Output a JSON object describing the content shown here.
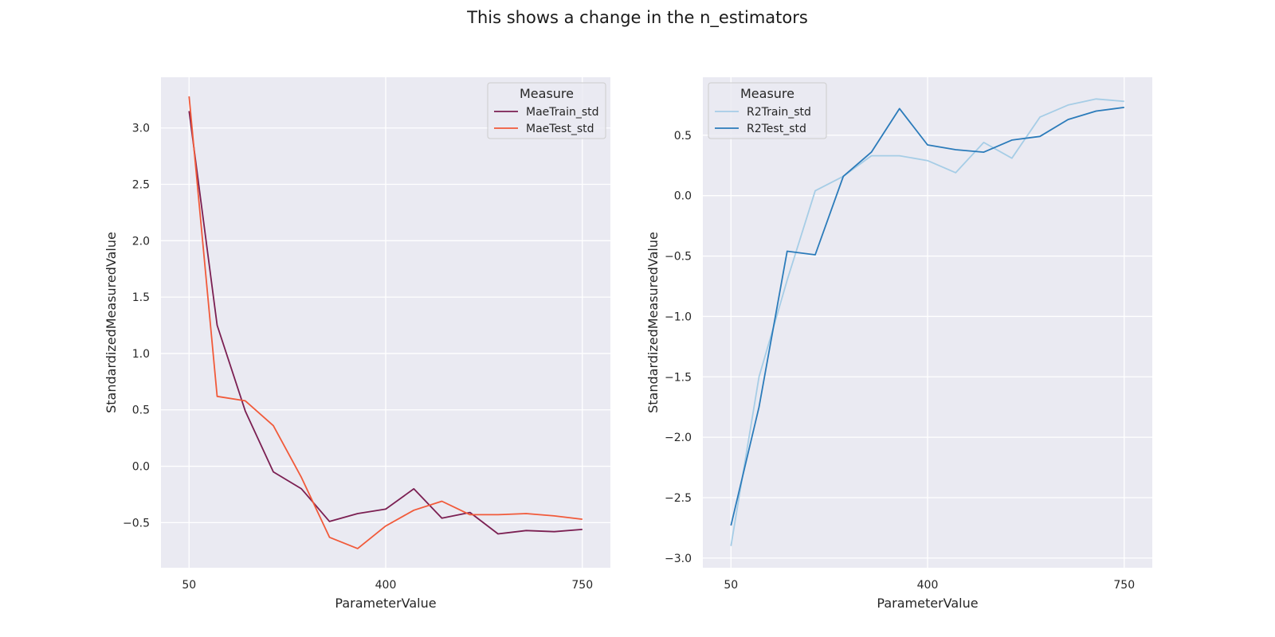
{
  "figure": {
    "title": "This shows a change in the n_estimators"
  },
  "chart_data": [
    {
      "type": "line",
      "xlabel": "ParameterValue",
      "ylabel": "StandardizedMeasuredValue",
      "xlim": [
        0,
        800
      ],
      "ylim": [
        -0.9,
        3.45
      ],
      "xticks": [
        50,
        400,
        750
      ],
      "yticks": [
        -0.5,
        0.0,
        0.5,
        1.0,
        1.5,
        2.0,
        2.5,
        3.0
      ],
      "ytick_labels": [
        "−0.5",
        "0.0",
        "0.5",
        "1.0",
        "1.5",
        "2.0",
        "2.5",
        "3.0"
      ],
      "grid": true,
      "legend": {
        "title": "Measure",
        "position": "top-right"
      },
      "x": [
        50,
        100,
        150,
        200,
        250,
        300,
        350,
        400,
        450,
        500,
        550,
        600,
        650,
        700,
        750
      ],
      "series": [
        {
          "name": "MaeTrain_std",
          "color": "#7b1f52",
          "values": [
            3.15,
            1.25,
            0.49,
            -0.05,
            -0.2,
            -0.49,
            -0.42,
            -0.38,
            -0.2,
            -0.46,
            -0.41,
            -0.6,
            -0.57,
            -0.58,
            -0.56
          ]
        },
        {
          "name": "MaeTest_std",
          "color": "#f15a3a",
          "values": [
            3.28,
            0.62,
            0.58,
            0.36,
            -0.1,
            -0.63,
            -0.73,
            -0.53,
            -0.39,
            -0.31,
            -0.43,
            -0.43,
            -0.42,
            -0.44,
            -0.47
          ]
        }
      ]
    },
    {
      "type": "line",
      "xlabel": "ParameterValue",
      "ylabel": "StandardizedMeasuredValue",
      "xlim": [
        0,
        800
      ],
      "ylim": [
        -3.08,
        0.98
      ],
      "xticks": [
        50,
        400,
        750
      ],
      "yticks": [
        -3.0,
        -2.5,
        -2.0,
        -1.5,
        -1.0,
        -0.5,
        0.0,
        0.5
      ],
      "ytick_labels": [
        "−3.0",
        "−2.5",
        "−2.0",
        "−1.5",
        "−1.0",
        "−0.5",
        "0.0",
        "0.5"
      ],
      "grid": true,
      "legend": {
        "title": "Measure",
        "position": "top-left"
      },
      "x": [
        50,
        100,
        150,
        200,
        250,
        300,
        350,
        400,
        450,
        500,
        550,
        600,
        650,
        700,
        750
      ],
      "series": [
        {
          "name": "R2Train_std",
          "color": "#a6cde6",
          "values": [
            -2.9,
            -1.5,
            -0.7,
            0.04,
            0.16,
            0.33,
            0.33,
            0.29,
            0.19,
            0.44,
            0.31,
            0.65,
            0.75,
            0.8,
            0.78
          ]
        },
        {
          "name": "R2Test_std",
          "color": "#2b7bba",
          "values": [
            -2.73,
            -1.75,
            -0.46,
            -0.49,
            0.16,
            0.36,
            0.72,
            0.42,
            0.38,
            0.36,
            0.46,
            0.49,
            0.63,
            0.7,
            0.73
          ]
        }
      ]
    }
  ]
}
